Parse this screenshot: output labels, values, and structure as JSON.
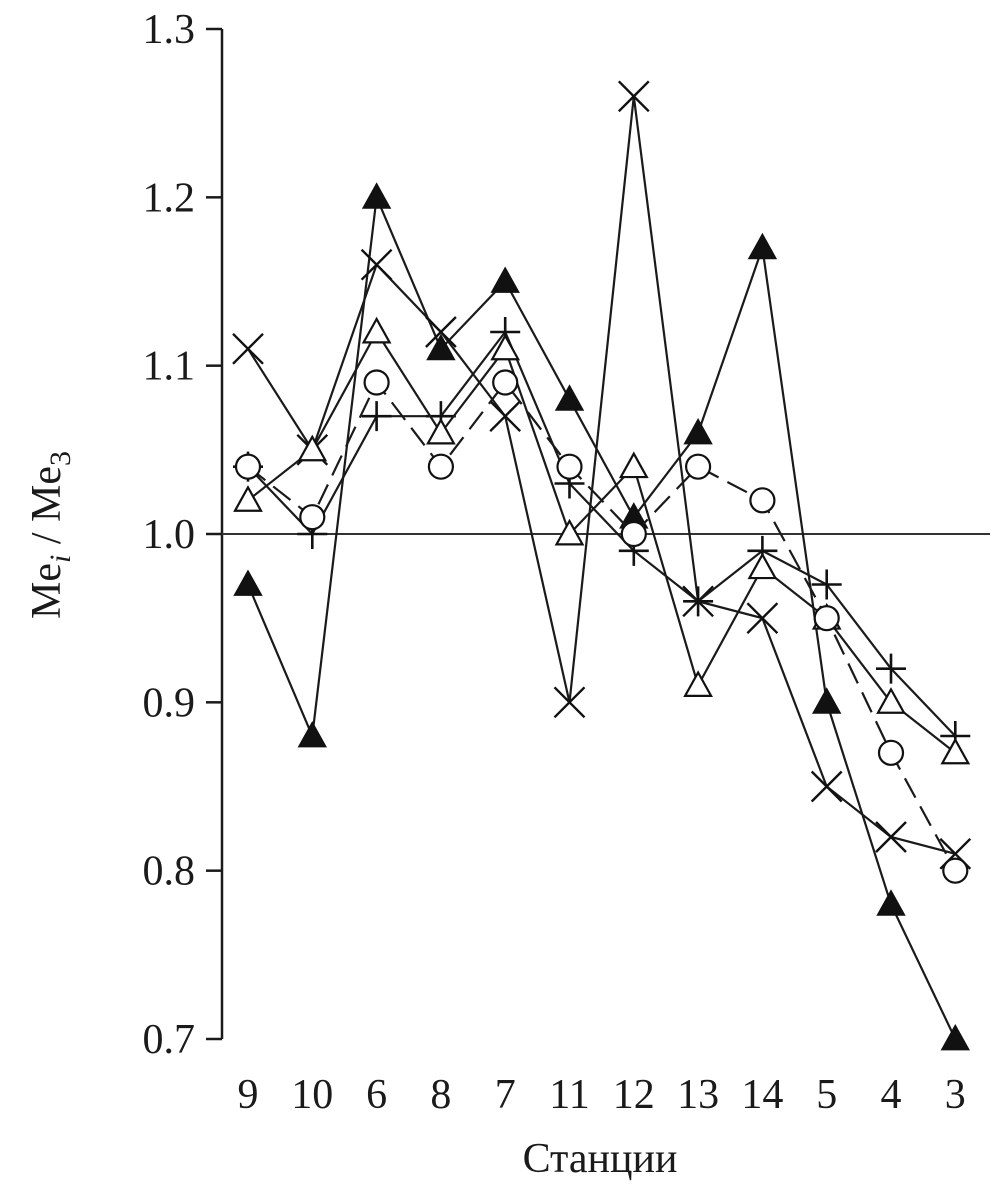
{
  "chart_data": {
    "type": "line",
    "title": "",
    "xlabel": "Станции",
    "ylabel": {
      "base": "Me",
      "sub_i": "i",
      "separator": " / ",
      "sub_3": "3"
    },
    "categories": [
      "9",
      "10",
      "6",
      "8",
      "7",
      "11",
      "12",
      "13",
      "14",
      "5",
      "4",
      "3"
    ],
    "y_ticks": [
      "1.3",
      "1.2",
      "1.1",
      "1.0",
      "0.9",
      "0.8",
      "0.7"
    ],
    "ylim": [
      0.7,
      1.3
    ],
    "reference_line": 1.0,
    "grid": false,
    "legend": "none",
    "series": [
      {
        "marker": "filled-triangle",
        "dash": "solid",
        "values": [
          0.97,
          0.88,
          1.2,
          1.11,
          1.15,
          1.08,
          1.01,
          1.06,
          1.17,
          0.9,
          0.78,
          0.7
        ]
      },
      {
        "marker": "x",
        "dash": "solid",
        "values": [
          1.11,
          1.05,
          1.16,
          1.12,
          1.07,
          0.9,
          1.26,
          0.96,
          0.95,
          0.85,
          0.82,
          0.81
        ]
      },
      {
        "marker": "plus",
        "dash": "solid",
        "values": [
          1.04,
          1.0,
          1.07,
          1.07,
          1.12,
          1.03,
          0.99,
          0.96,
          0.99,
          0.97,
          0.92,
          0.88
        ]
      },
      {
        "marker": "open-triangle",
        "dash": "solid",
        "values": [
          1.02,
          1.05,
          1.12,
          1.06,
          1.11,
          1.0,
          1.04,
          0.91,
          0.98,
          0.95,
          0.9,
          0.87
        ]
      },
      {
        "marker": "open-circle",
        "dash": "dashed",
        "values": [
          1.04,
          1.01,
          1.09,
          1.04,
          1.09,
          1.04,
          1.0,
          1.04,
          1.02,
          0.95,
          0.87,
          0.8
        ]
      }
    ]
  }
}
